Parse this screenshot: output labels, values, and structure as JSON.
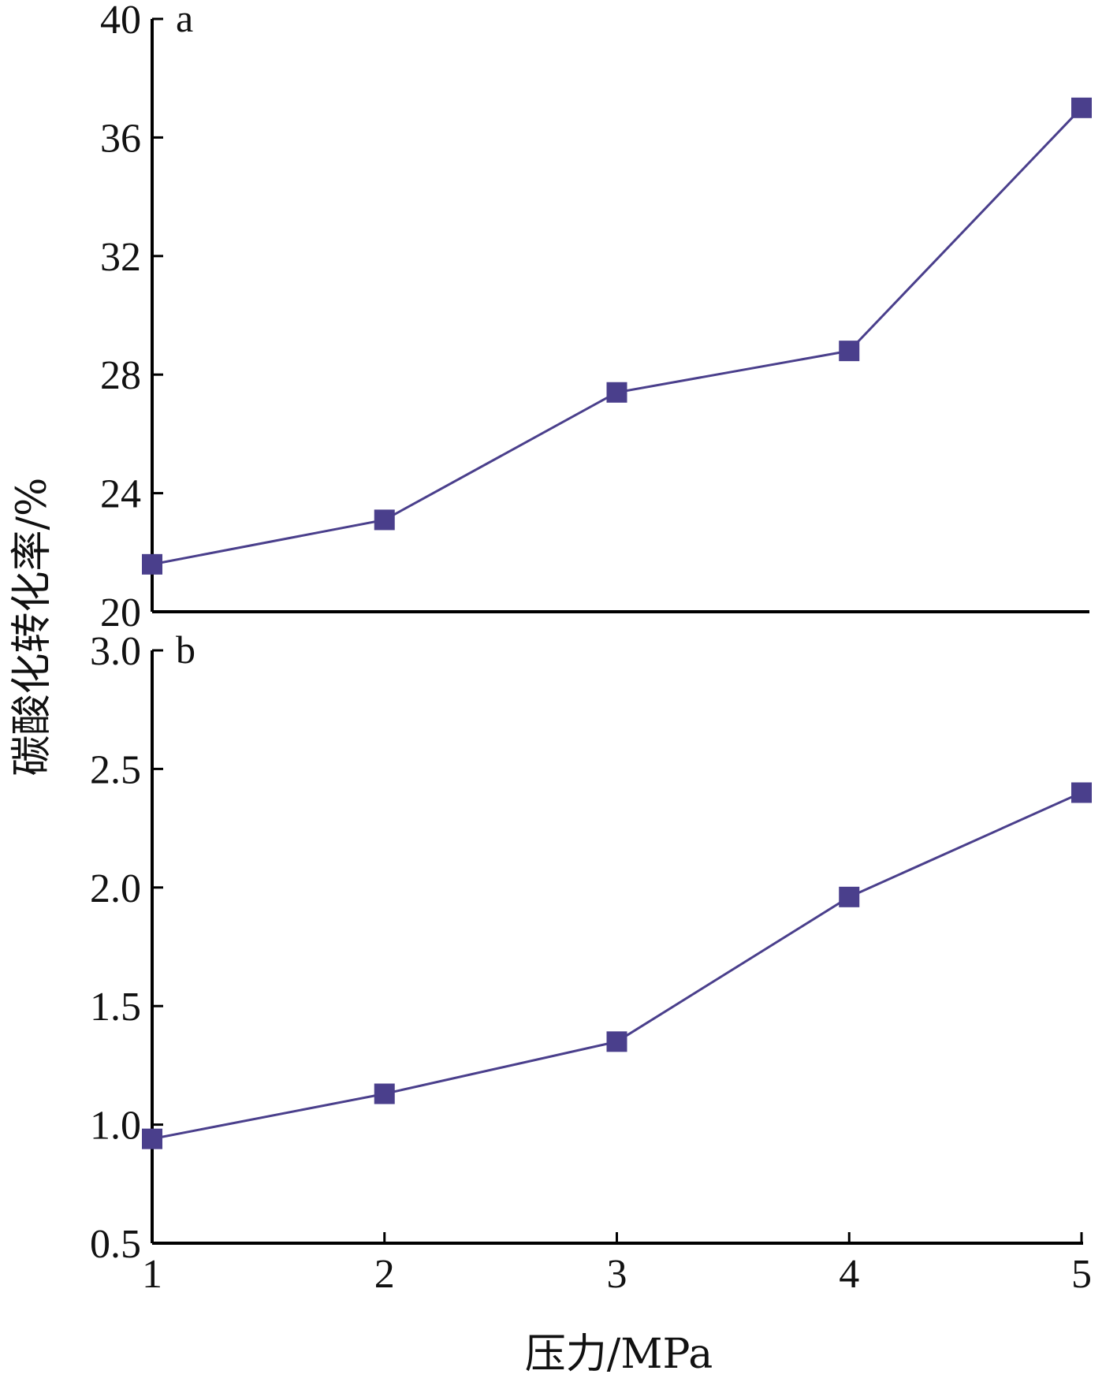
{
  "chart_data": [
    {
      "type": "line",
      "panel_label": "a",
      "x": [
        1,
        2,
        3,
        4,
        5
      ],
      "y": [
        21.6,
        23.1,
        27.4,
        28.8,
        37.0
      ],
      "ylim": [
        20,
        40
      ],
      "yticks": [
        "20",
        "24",
        "28",
        "32",
        "36",
        "40"
      ],
      "ytick_values": [
        20,
        24,
        28,
        32,
        36,
        40
      ],
      "marker": "square",
      "color": "#4a3f8c"
    },
    {
      "type": "line",
      "panel_label": "b",
      "x": [
        1,
        2,
        3,
        4,
        5
      ],
      "y": [
        0.94,
        1.13,
        1.35,
        1.96,
        2.4
      ],
      "ylim": [
        0.5,
        3.0
      ],
      "yticks": [
        "0.5",
        "1.0",
        "1.5",
        "2.0",
        "2.5",
        "3.0"
      ],
      "ytick_values": [
        0.5,
        1.0,
        1.5,
        2.0,
        2.5,
        3.0
      ],
      "marker": "square",
      "color": "#4a3f8c"
    }
  ],
  "xaxis": {
    "ticks": [
      "1",
      "2",
      "3",
      "4",
      "5"
    ],
    "tick_values": [
      1,
      2,
      3,
      4,
      5
    ],
    "xlim": [
      1,
      5
    ],
    "label": "压力/MPa"
  },
  "ylabel": "碳酸化转化率/%"
}
